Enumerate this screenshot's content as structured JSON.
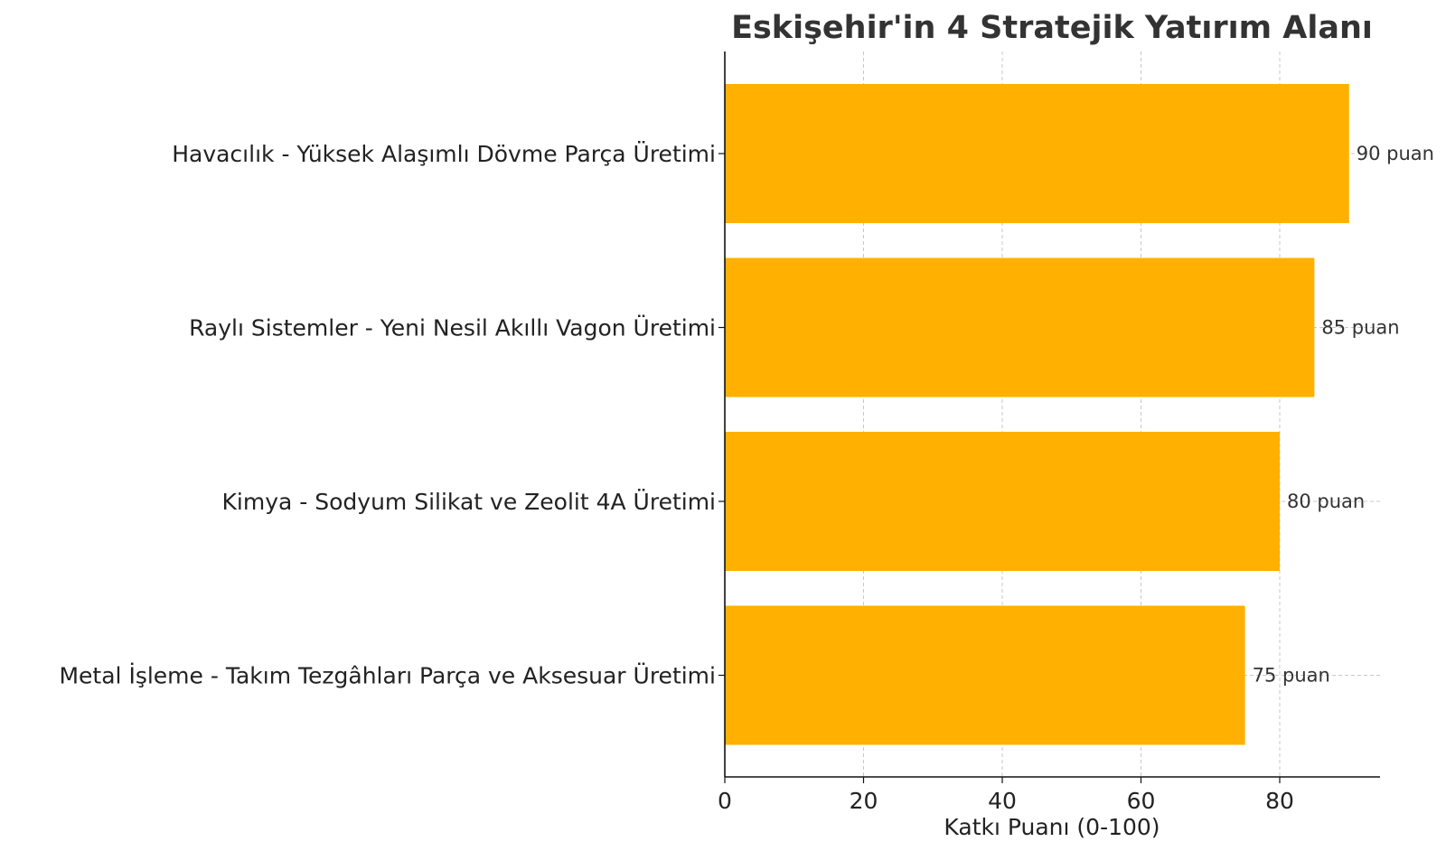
{
  "chart_data": {
    "type": "bar",
    "orientation": "horizontal",
    "title": "Eskişehir'in 4 Stratejik Yatırım Alanı",
    "xlabel": "Katkı Puanı (0-100)",
    "ylabel": "",
    "xlim": [
      0,
      95
    ],
    "xticks": [
      0,
      20,
      40,
      60,
      80
    ],
    "categories": [
      "Havacılık - Yüksek Alaşımlı Dövme Parça Üretimi",
      "Raylı Sistemler - Yeni Nesil Akıllı Vagon Üretimi",
      "Kimya - Sodyum Silikat ve Zeolit 4A Üretimi",
      "Metal İşleme - Takım Tezgâhları Parça ve Aksesuar Üretimi"
    ],
    "values": [
      90,
      85,
      80,
      75
    ],
    "data_labels": [
      "90 puan",
      "85 puan",
      "80 puan",
      "75 puan"
    ],
    "bar_color": "#FFB000",
    "grid": true
  }
}
